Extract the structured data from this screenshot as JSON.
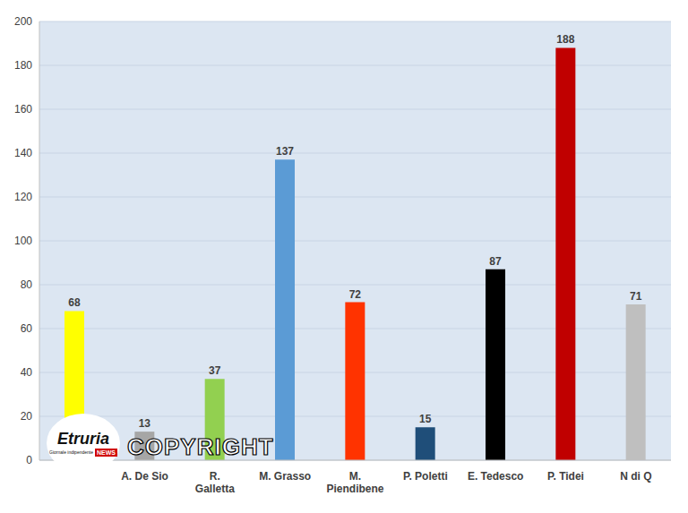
{
  "chart_data": {
    "type": "bar",
    "categories": [
      null,
      "A. De Sio",
      "R. Galletta",
      "M. Grasso",
      "M. Piendibene",
      "P. Poletti",
      "E. Tedesco",
      "P. Tidei",
      "N di Q"
    ],
    "values": [
      68,
      13,
      37,
      137,
      72,
      15,
      87,
      188,
      71
    ],
    "colors": [
      "#ffff00",
      "#a6a6a6",
      "#92d050",
      "#5b9bd5",
      "#ff3300",
      "#1f4e79",
      "#000000",
      "#c00000",
      "#bfbfbf"
    ],
    "ylim": [
      0,
      200
    ],
    "yticks": [
      0,
      20,
      40,
      60,
      80,
      100,
      120,
      140,
      160,
      180,
      200
    ],
    "grid": true,
    "data_labels": true,
    "annotations": {
      "watermark": "COPYRIGHT",
      "logo": [
        "Etruria",
        "Giornale indipendente",
        "NEWS"
      ]
    }
  }
}
